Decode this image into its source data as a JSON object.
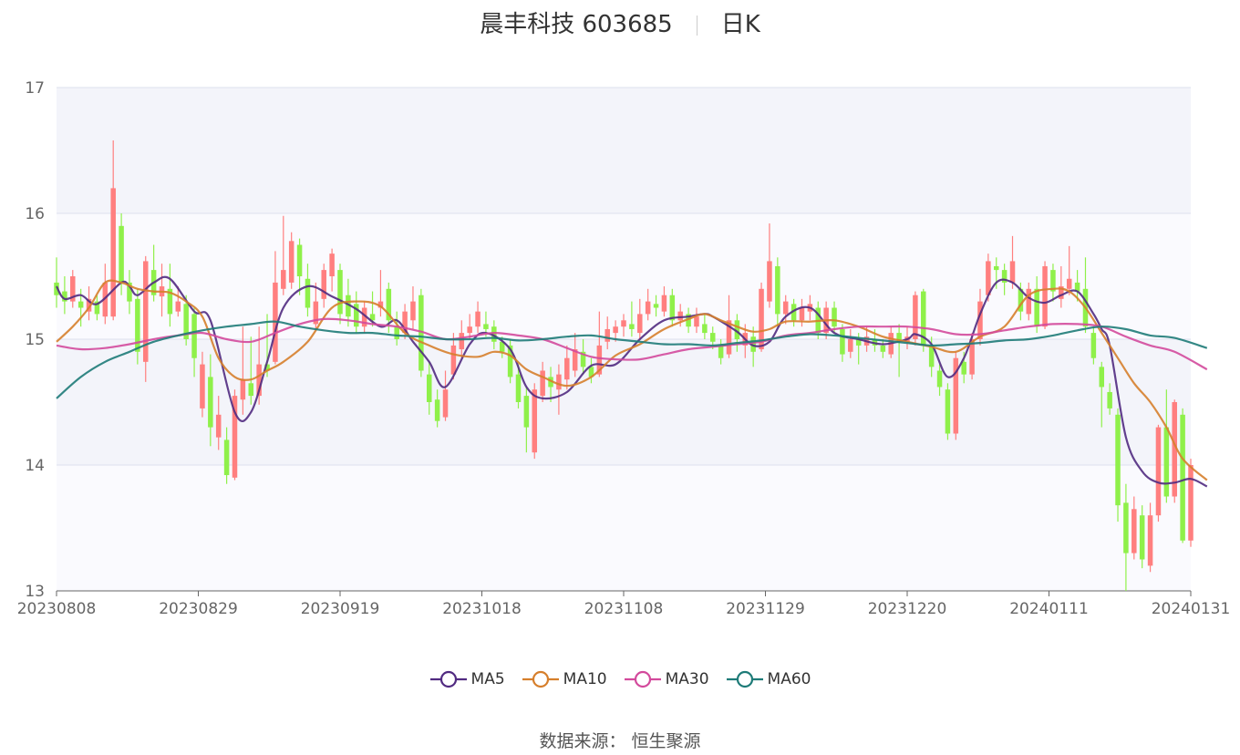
{
  "chart_data": {
    "type": "candlestick",
    "title": "晨丰科技 603685",
    "subtitle": "日K",
    "ylim": [
      13,
      17
    ],
    "yticks": [
      "13",
      "14",
      "15",
      "16",
      "17"
    ],
    "xticks": [
      "20230808",
      "20230829",
      "20230919",
      "20231018",
      "20231108",
      "20231129",
      "20231220",
      "20240111",
      "20240131"
    ],
    "grid": true,
    "legend_position": "bottom",
    "up_color": "#ff7f7f",
    "down_color": "#8ff04a",
    "candles": [
      [
        15.45,
        15.35,
        15.65,
        15.25
      ],
      [
        15.38,
        15.3,
        15.5,
        15.2
      ],
      [
        15.3,
        15.5,
        15.55,
        15.25
      ],
      [
        15.3,
        15.25,
        15.4,
        15.1
      ],
      [
        15.22,
        15.32,
        15.42,
        15.15
      ],
      [
        15.3,
        15.2,
        15.35,
        15.15
      ],
      [
        15.18,
        15.45,
        15.6,
        15.12
      ],
      [
        15.18,
        16.2,
        16.58,
        15.15
      ],
      [
        15.9,
        15.45,
        16.0,
        15.35
      ],
      [
        15.45,
        15.3,
        15.55,
        15.2
      ],
      [
        15.32,
        14.9,
        15.4,
        14.8
      ],
      [
        14.82,
        15.62,
        15.66,
        14.66
      ],
      [
        15.55,
        15.35,
        15.75,
        15.3
      ],
      [
        15.34,
        15.42,
        15.6,
        15.18
      ],
      [
        15.4,
        15.2,
        15.6,
        15.1
      ],
      [
        15.22,
        15.3,
        15.42,
        15.18
      ],
      [
        15.28,
        15.0,
        15.35,
        14.95
      ],
      [
        15.2,
        14.85,
        15.25,
        14.7
      ],
      [
        14.45,
        14.8,
        14.9,
        14.38
      ],
      [
        14.7,
        14.3,
        14.88,
        14.15
      ],
      [
        14.22,
        14.4,
        14.55,
        14.12
      ],
      [
        14.2,
        13.92,
        14.3,
        13.85
      ],
      [
        13.9,
        14.55,
        14.6,
        13.88
      ],
      [
        14.52,
        14.68,
        15.1,
        14.4
      ],
      [
        14.65,
        14.55,
        15.02,
        14.48
      ],
      [
        14.55,
        14.8,
        15.1,
        14.48
      ],
      [
        14.8,
        14.75,
        15.2,
        14.7
      ],
      [
        14.82,
        15.45,
        15.7,
        14.8
      ],
      [
        15.4,
        15.55,
        15.98,
        15.35
      ],
      [
        15.45,
        15.78,
        15.85,
        15.4
      ],
      [
        15.75,
        15.5,
        15.8,
        15.35
      ],
      [
        15.48,
        15.25,
        15.6,
        15.18
      ],
      [
        15.12,
        15.3,
        15.45,
        15.08
      ],
      [
        15.32,
        15.55,
        15.6,
        15.25
      ],
      [
        15.5,
        15.68,
        15.72,
        15.38
      ],
      [
        15.55,
        15.2,
        15.6,
        15.12
      ],
      [
        15.35,
        15.18,
        15.48,
        15.1
      ],
      [
        15.28,
        15.1,
        15.38,
        15.05
      ],
      [
        15.1,
        15.25,
        15.3,
        15.05
      ],
      [
        15.2,
        15.15,
        15.38,
        15.1
      ],
      [
        15.25,
        15.3,
        15.55,
        15.18
      ],
      [
        15.4,
        15.15,
        15.45,
        15.05
      ],
      [
        15.1,
        15.0,
        15.22,
        14.95
      ],
      [
        15.05,
        15.22,
        15.28,
        15.0
      ],
      [
        15.15,
        15.3,
        15.42,
        15.08
      ],
      [
        15.35,
        14.75,
        15.4,
        14.7
      ],
      [
        14.72,
        14.5,
        14.82,
        14.4
      ],
      [
        14.52,
        14.35,
        14.6,
        14.3
      ],
      [
        14.38,
        14.6,
        14.75,
        14.35
      ],
      [
        14.72,
        14.95,
        15.05,
        14.68
      ],
      [
        14.92,
        15.05,
        15.15,
        14.85
      ],
      [
        15.05,
        15.1,
        15.2,
        15.0
      ],
      [
        15.1,
        15.22,
        15.3,
        15.05
      ],
      [
        15.12,
        15.08,
        15.22,
        15.02
      ],
      [
        15.1,
        14.98,
        15.15,
        14.92
      ],
      [
        14.98,
        14.9,
        15.02,
        14.85
      ],
      [
        14.95,
        14.7,
        15.0,
        14.65
      ],
      [
        14.72,
        14.5,
        14.8,
        14.45
      ],
      [
        14.55,
        14.3,
        14.62,
        14.1
      ],
      [
        14.1,
        14.6,
        14.65,
        14.05
      ],
      [
        14.55,
        14.75,
        14.82,
        14.5
      ],
      [
        14.7,
        14.62,
        14.78,
        14.5
      ],
      [
        14.6,
        14.72,
        14.8,
        14.4
      ],
      [
        14.68,
        14.85,
        14.95,
        14.6
      ],
      [
        14.75,
        14.92,
        15.05,
        14.7
      ],
      [
        14.9,
        14.78,
        15.0,
        14.72
      ],
      [
        14.78,
        14.7,
        14.85,
        14.65
      ],
      [
        14.72,
        14.95,
        15.22,
        14.7
      ],
      [
        14.98,
        15.08,
        15.18,
        14.92
      ],
      [
        15.05,
        15.1,
        15.15,
        14.98
      ],
      [
        15.1,
        15.15,
        15.2,
        15.02
      ],
      [
        15.12,
        15.08,
        15.3,
        15.02
      ],
      [
        15.05,
        15.2,
        15.32,
        15.0
      ],
      [
        15.2,
        15.3,
        15.4,
        15.15
      ],
      [
        15.28,
        15.25,
        15.35,
        15.18
      ],
      [
        15.22,
        15.35,
        15.42,
        15.18
      ],
      [
        15.35,
        15.15,
        15.4,
        15.1
      ],
      [
        15.15,
        15.22,
        15.28,
        15.1
      ],
      [
        15.2,
        15.1,
        15.25,
        15.05
      ],
      [
        15.1,
        15.18,
        15.25,
        15.05
      ],
      [
        15.12,
        15.05,
        15.2,
        15.0
      ],
      [
        15.05,
        14.98,
        15.1,
        14.92
      ],
      [
        14.95,
        14.85,
        15.0,
        14.8
      ],
      [
        14.88,
        15.15,
        15.35,
        14.85
      ],
      [
        15.15,
        15.0,
        15.2,
        14.9
      ],
      [
        14.95,
        15.05,
        15.12,
        14.85
      ],
      [
        15.02,
        14.9,
        15.1,
        14.78
      ],
      [
        14.92,
        15.4,
        15.45,
        14.9
      ],
      [
        15.3,
        15.62,
        15.92,
        15.25
      ],
      [
        15.58,
        15.2,
        15.65,
        15.1
      ],
      [
        15.2,
        15.3,
        15.35,
        15.12
      ],
      [
        15.28,
        15.15,
        15.32,
        15.1
      ],
      [
        15.15,
        15.25,
        15.32,
        15.1
      ],
      [
        15.22,
        15.28,
        15.35,
        15.15
      ],
      [
        15.25,
        15.05,
        15.3,
        15.0
      ],
      [
        15.05,
        15.25,
        15.3,
        15.0
      ],
      [
        15.25,
        15.1,
        15.3,
        15.05
      ],
      [
        15.08,
        14.88,
        15.12,
        14.82
      ],
      [
        14.9,
        15.0,
        15.08,
        14.85
      ],
      [
        15.0,
        14.95,
        15.05,
        14.8
      ],
      [
        14.95,
        15.02,
        15.1,
        14.9
      ],
      [
        15.0,
        14.95,
        15.08,
        14.9
      ],
      [
        14.95,
        14.9,
        15.0,
        14.85
      ],
      [
        14.88,
        15.05,
        15.1,
        14.85
      ],
      [
        15.05,
        14.98,
        15.12,
        14.7
      ],
      [
        14.98,
        15.02,
        15.1,
        14.92
      ],
      [
        15.0,
        15.35,
        15.38,
        14.95
      ],
      [
        15.38,
        14.95,
        15.4,
        14.9
      ],
      [
        14.95,
        14.78,
        15.02,
        14.7
      ],
      [
        14.75,
        14.62,
        14.8,
        14.55
      ],
      [
        14.6,
        14.25,
        14.65,
        14.2
      ],
      [
        14.25,
        14.85,
        14.9,
        14.2
      ],
      [
        14.82,
        14.72,
        14.9,
        14.65
      ],
      [
        14.72,
        15.0,
        15.05,
        14.68
      ],
      [
        15.0,
        15.3,
        15.4,
        14.95
      ],
      [
        15.35,
        15.62,
        15.68,
        15.3
      ],
      [
        15.58,
        15.55,
        15.65,
        15.4
      ],
      [
        15.55,
        15.45,
        15.6,
        15.35
      ],
      [
        15.45,
        15.62,
        15.82,
        15.4
      ],
      [
        15.4,
        15.22,
        15.45,
        15.15
      ],
      [
        15.2,
        15.4,
        15.45,
        15.15
      ],
      [
        15.4,
        15.1,
        15.5,
        15.05
      ],
      [
        15.1,
        15.58,
        15.62,
        15.08
      ],
      [
        15.55,
        15.38,
        15.6,
        15.3
      ],
      [
        15.32,
        15.42,
        15.58,
        15.25
      ],
      [
        15.4,
        15.48,
        15.74,
        15.35
      ],
      [
        15.45,
        15.38,
        15.55,
        15.3
      ],
      [
        15.4,
        15.1,
        15.65,
        15.05
      ],
      [
        15.05,
        14.85,
        15.1,
        14.8
      ],
      [
        14.78,
        14.62,
        14.82,
        14.3
      ],
      [
        14.58,
        14.45,
        14.65,
        14.4
      ],
      [
        14.4,
        13.68,
        14.45,
        13.55
      ],
      [
        13.7,
        13.3,
        13.85,
        13.0
      ],
      [
        13.3,
        13.65,
        13.75,
        13.25
      ],
      [
        13.6,
        13.25,
        13.68,
        13.18
      ],
      [
        13.2,
        13.6,
        13.7,
        13.15
      ],
      [
        13.6,
        14.3,
        14.32,
        13.55
      ],
      [
        14.3,
        13.75,
        14.6,
        13.7
      ],
      [
        13.75,
        14.5,
        14.52,
        13.7
      ],
      [
        14.4,
        13.4,
        14.45,
        13.38
      ],
      [
        13.4,
        14.0,
        14.05,
        13.35
      ]
    ],
    "series": [
      {
        "name": "MA5",
        "color": "#512b81",
        "x": [
          0,
          1,
          3,
          5,
          8,
          9,
          10,
          12,
          14,
          17,
          19,
          22,
          24,
          26,
          28,
          31,
          34,
          37,
          40,
          42,
          44,
          46,
          48,
          51,
          53,
          56,
          58,
          60,
          63,
          66,
          69,
          72,
          75,
          78,
          80,
          81,
          84,
          86,
          88,
          90,
          93,
          96,
          99,
          102,
          105,
          106,
          108,
          110,
          112,
          114,
          116,
          118,
          120,
          122,
          124,
          126,
          128,
          129,
          130,
          132,
          134,
          136,
          138,
          140,
          142
        ],
        "y": [
          15.42,
          15.32,
          15.35,
          15.28,
          15.45,
          15.42,
          15.35,
          15.45,
          15.48,
          15.22,
          15.15,
          14.42,
          14.42,
          14.82,
          15.25,
          15.42,
          15.34,
          15.24,
          15.1,
          15.15,
          14.98,
          14.82,
          14.62,
          14.96,
          15.05,
          14.92,
          14.62,
          14.53,
          14.58,
          14.79,
          14.8,
          15.0,
          15.15,
          15.18,
          15.2,
          15.18,
          15.06,
          14.95,
          14.98,
          15.18,
          15.25,
          15.05,
          15.0,
          14.96,
          15.0,
          15.04,
          14.96,
          14.7,
          14.85,
          15.2,
          15.45,
          15.45,
          15.33,
          15.29,
          15.35,
          15.38,
          15.2,
          15.08,
          14.95,
          14.22,
          13.95,
          13.86,
          13.86,
          13.89,
          13.83
        ]
      },
      {
        "name": "MA10",
        "color": "#d67f2c",
        "x": [
          0,
          2,
          4,
          6,
          8,
          10,
          12,
          14,
          16,
          18,
          20,
          22,
          24,
          26,
          28,
          31,
          34,
          37,
          40,
          43,
          46,
          49,
          52,
          54,
          56,
          58,
          60,
          63,
          66,
          69,
          72,
          75,
          78,
          80,
          82,
          84,
          86,
          88,
          90,
          93,
          96,
          99,
          102,
          105,
          108,
          111,
          114,
          117,
          120,
          123,
          125,
          127,
          129,
          131,
          133,
          135,
          137,
          139,
          142
        ],
        "y": [
          14.98,
          15.1,
          15.25,
          15.45,
          15.45,
          15.4,
          15.38,
          15.37,
          15.3,
          15.18,
          14.85,
          14.7,
          14.68,
          14.75,
          14.82,
          14.98,
          15.25,
          15.3,
          15.26,
          15.05,
          14.95,
          14.88,
          14.86,
          14.9,
          14.87,
          14.76,
          14.7,
          14.63,
          14.7,
          14.87,
          14.96,
          15.08,
          15.16,
          15.2,
          15.15,
          15.1,
          15.06,
          15.08,
          15.14,
          15.14,
          15.15,
          15.1,
          15.02,
          14.98,
          14.94,
          14.9,
          15.02,
          15.1,
          15.35,
          15.4,
          15.38,
          15.25,
          15.05,
          14.85,
          14.65,
          14.5,
          14.3,
          14.05,
          13.88
        ]
      },
      {
        "name": "MA30",
        "color": "#d34a9c",
        "x": [
          0,
          3,
          6,
          9,
          12,
          15,
          18,
          21,
          24,
          27,
          30,
          33,
          36,
          39,
          42,
          45,
          48,
          51,
          54,
          57,
          60,
          63,
          66,
          69,
          72,
          75,
          78,
          81,
          84,
          87,
          90,
          93,
          96,
          99,
          102,
          105,
          108,
          111,
          114,
          117,
          120,
          123,
          126,
          129,
          132,
          135,
          138,
          142
        ],
        "y": [
          14.95,
          14.92,
          14.93,
          14.96,
          15.0,
          15.03,
          15.05,
          15.0,
          14.98,
          15.05,
          15.12,
          15.16,
          15.15,
          15.12,
          15.1,
          15.06,
          15.0,
          15.02,
          15.05,
          15.03,
          15.0,
          14.93,
          14.86,
          14.84,
          14.84,
          14.88,
          14.92,
          14.94,
          14.96,
          14.98,
          15.03,
          15.05,
          15.08,
          15.1,
          15.1,
          15.1,
          15.08,
          15.04,
          15.04,
          15.07,
          15.1,
          15.12,
          15.12,
          15.1,
          15.02,
          14.95,
          14.9,
          14.76
        ]
      },
      {
        "name": "MA60",
        "color": "#1e7b78",
        "x": [
          0,
          3,
          6,
          9,
          12,
          15,
          18,
          21,
          24,
          27,
          30,
          33,
          36,
          39,
          42,
          45,
          48,
          51,
          54,
          57,
          60,
          63,
          66,
          69,
          72,
          75,
          78,
          81,
          84,
          87,
          90,
          93,
          96,
          99,
          102,
          105,
          108,
          111,
          114,
          117,
          120,
          123,
          126,
          129,
          132,
          135,
          138,
          142
        ],
        "y": [
          14.53,
          14.7,
          14.82,
          14.9,
          14.98,
          15.03,
          15.07,
          15.1,
          15.12,
          15.14,
          15.1,
          15.07,
          15.05,
          15.05,
          15.03,
          15.02,
          15.0,
          15.0,
          15.01,
          14.99,
          15.0,
          15.02,
          15.03,
          15.0,
          14.98,
          14.96,
          14.96,
          14.95,
          14.97,
          14.99,
          15.02,
          15.04,
          15.03,
          15.01,
          14.99,
          14.97,
          14.95,
          14.96,
          14.97,
          14.99,
          15.0,
          15.03,
          15.07,
          15.1,
          15.08,
          15.03,
          15.01,
          14.93
        ]
      }
    ]
  },
  "footer": {
    "source": "数据来源：  恒生聚源"
  }
}
